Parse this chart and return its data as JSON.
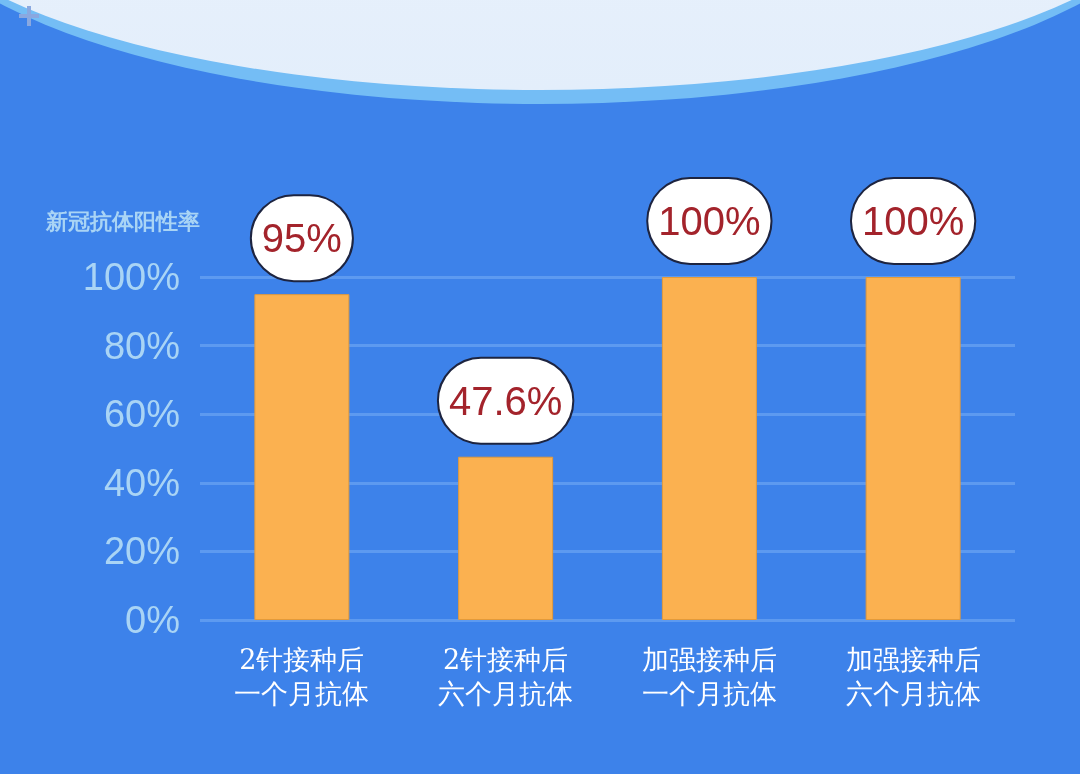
{
  "chart_data": {
    "type": "bar",
    "ylabel": "新冠抗体阳性率",
    "categories": [
      "2针接种后一个月抗体",
      "2针接种后六个月抗体",
      "加强接种后一个月抗体",
      "加强接种后六个月抗体"
    ],
    "values": [
      95,
      47.6,
      100,
      100
    ],
    "value_labels": [
      "95%",
      "47.6%",
      "100%",
      "100%"
    ],
    "color": "#fbb150",
    "ylim": [
      0,
      100
    ],
    "yticks": [
      {
        "value": 0,
        "label": "0%"
      },
      {
        "value": 20,
        "label": "20%"
      },
      {
        "value": 40,
        "label": "40%"
      },
      {
        "value": 60,
        "label": "60%"
      },
      {
        "value": 80,
        "label": "80%"
      },
      {
        "value": 100,
        "label": "100%"
      }
    ],
    "grid": "y"
  }
}
